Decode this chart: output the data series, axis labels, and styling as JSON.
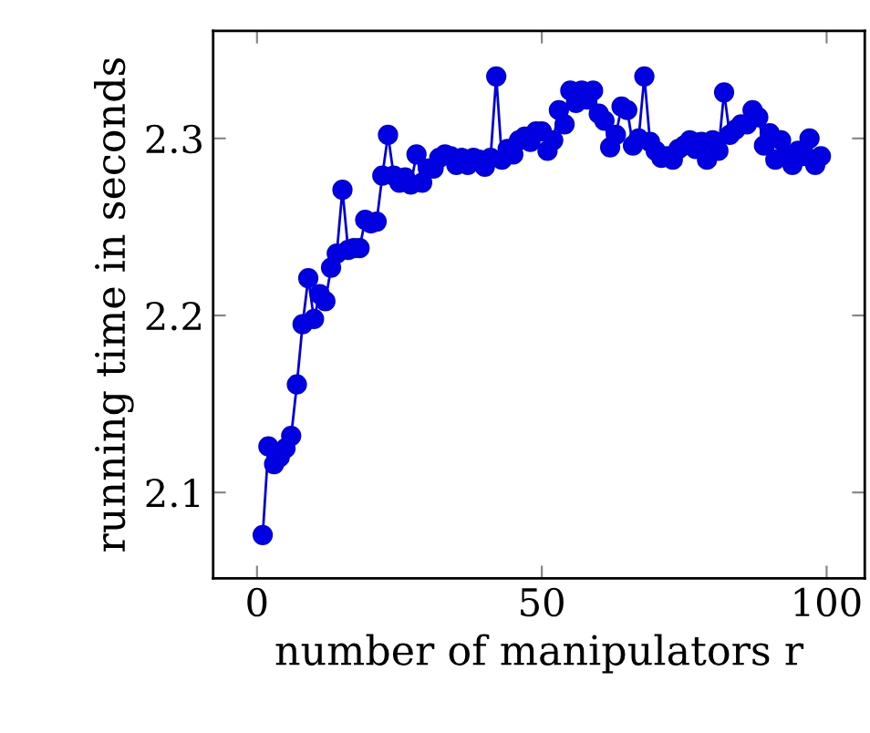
{
  "chart_data": {
    "type": "line",
    "xlabel": "number of manipulators r",
    "ylabel": "running time in seconds",
    "x": [
      1,
      2,
      3,
      4,
      5,
      6,
      7,
      8,
      9,
      10,
      11,
      12,
      13,
      14,
      15,
      16,
      17,
      18,
      19,
      20,
      21,
      22,
      23,
      24,
      25,
      26,
      27,
      28,
      29,
      30,
      31,
      32,
      33,
      34,
      35,
      36,
      37,
      38,
      39,
      40,
      41,
      42,
      43,
      44,
      45,
      46,
      47,
      48,
      49,
      50,
      51,
      52,
      53,
      54,
      55,
      56,
      57,
      58,
      59,
      60,
      61,
      62,
      63,
      64,
      65,
      66,
      67,
      68,
      69,
      70,
      71,
      72,
      73,
      74,
      75,
      76,
      77,
      78,
      79,
      80,
      81,
      82,
      83,
      84,
      85,
      86,
      87,
      88,
      89,
      90,
      91,
      92,
      93,
      94,
      95,
      96,
      97,
      98,
      99
    ],
    "series": [
      {
        "color": "#0000e0",
        "values": [
          2.076,
          2.126,
          2.116,
          2.12,
          2.125,
          2.132,
          2.161,
          2.195,
          2.221,
          2.198,
          2.212,
          2.208,
          2.227,
          2.235,
          2.271,
          2.237,
          2.238,
          2.238,
          2.254,
          2.252,
          2.253,
          2.279,
          2.302,
          2.279,
          2.275,
          2.278,
          2.274,
          2.291,
          2.275,
          2.283,
          2.283,
          2.289,
          2.291,
          2.29,
          2.285,
          2.289,
          2.285,
          2.289,
          2.288,
          2.284,
          2.289,
          2.335,
          2.288,
          2.294,
          2.291,
          2.299,
          2.301,
          2.298,
          2.304,
          2.304,
          2.293,
          2.299,
          2.316,
          2.308,
          2.327,
          2.32,
          2.327,
          2.322,
          2.327,
          2.314,
          2.31,
          2.295,
          2.302,
          2.318,
          2.316,
          2.296,
          2.3,
          2.335,
          2.298,
          2.293,
          2.289,
          2.29,
          2.288,
          2.294,
          2.296,
          2.299,
          2.294,
          2.298,
          2.288,
          2.299,
          2.293,
          2.326,
          2.302,
          2.305,
          2.308,
          2.308,
          2.316,
          2.312,
          2.296,
          2.303,
          2.288,
          2.299,
          2.291,
          2.285,
          2.293,
          2.29,
          2.3,
          2.285,
          2.29
        ]
      }
    ],
    "xlim": [
      -7.7,
      106.7
    ],
    "ylim": [
      2.0515,
      2.3608
    ],
    "xticks": [
      0,
      50,
      100
    ],
    "yticks": [
      2.1,
      2.2,
      2.3
    ],
    "marker": "circle",
    "grid": false,
    "legend": false
  }
}
